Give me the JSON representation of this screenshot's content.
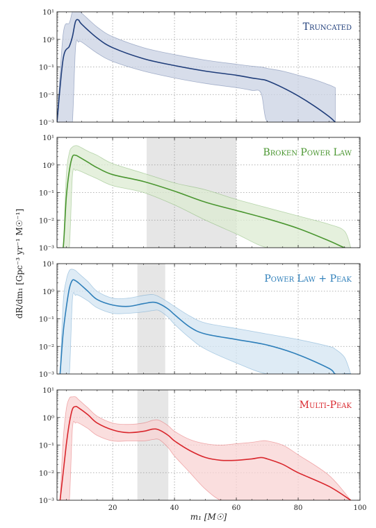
{
  "figure": {
    "ylabel": "dR/dm₁ [Gpc⁻³ yr⁻¹ M☉⁻¹]",
    "xlabel": "m₁ [M☉]"
  },
  "chart_data": [
    {
      "type": "area",
      "title": "Truncated",
      "color": "#1f3d7a",
      "fill": "#c9d2e3",
      "xlim": [
        2,
        100
      ],
      "ylim_log10": [
        -3,
        1
      ],
      "xticks": [
        20,
        40,
        60,
        80,
        100
      ],
      "ytick_labels": [
        "10⁻³",
        "10⁻²",
        "10⁻¹",
        "10⁰",
        "10¹"
      ],
      "shade": null,
      "x": [
        2,
        4,
        6,
        7,
        8,
        9,
        10,
        15,
        20,
        30,
        40,
        50,
        60,
        65,
        68,
        70,
        75,
        80,
        85,
        90,
        92
      ],
      "median": [
        -3,
        -0.7,
        -0.25,
        0.1,
        0.65,
        0.7,
        0.55,
        0.05,
        -0.3,
        -0.7,
        -0.95,
        -1.15,
        -1.3,
        -1.4,
        -1.45,
        -1.5,
        -1.75,
        -2.05,
        -2.4,
        -2.8,
        -3
      ],
      "lower": [
        -3,
        -3,
        -3,
        -3,
        -0.3,
        -0.1,
        -0.1,
        -0.5,
        -0.8,
        -1.15,
        -1.4,
        -1.6,
        -1.75,
        -1.85,
        -1.95,
        -3,
        -3,
        -3,
        -3,
        -3,
        -3
      ],
      "upper": [
        -3,
        0.2,
        0.6,
        1,
        1,
        1,
        0.95,
        0.45,
        0.1,
        -0.3,
        -0.55,
        -0.75,
        -0.9,
        -0.97,
        -1.0,
        -1.05,
        -1.15,
        -1.3,
        -1.45,
        -1.65,
        -1.75
      ]
    },
    {
      "type": "area",
      "title": "Broken Power Law",
      "color": "#4a9630",
      "fill": "#dcebd2",
      "xlim": [
        2,
        100
      ],
      "ylim_log10": [
        -3,
        1
      ],
      "xticks": [
        20,
        40,
        60,
        80,
        100
      ],
      "ytick_labels": [
        "10⁻³",
        "10⁻²",
        "10⁻¹",
        "10⁰",
        "10¹"
      ],
      "shade": [
        31,
        60
      ],
      "x": [
        3,
        4,
        5,
        6,
        7,
        8,
        9,
        12,
        15,
        20,
        30,
        40,
        50,
        60,
        70,
        80,
        90,
        95,
        97
      ],
      "median": [
        -3,
        -3,
        -1.2,
        -0.2,
        0.3,
        0.35,
        0.3,
        0.1,
        -0.1,
        -0.35,
        -0.6,
        -0.95,
        -1.35,
        -1.65,
        -1.95,
        -2.3,
        -2.75,
        -3,
        -3
      ],
      "lower": [
        -3,
        -3,
        -3,
        -3,
        -0.4,
        -0.2,
        -0.2,
        -0.35,
        -0.5,
        -0.75,
        -1.0,
        -1.45,
        -2.0,
        -2.5,
        -3,
        -3,
        -3,
        -3,
        -3
      ],
      "upper": [
        -3,
        -3,
        -0.4,
        0.45,
        0.65,
        0.7,
        0.68,
        0.5,
        0.35,
        0.05,
        -0.3,
        -0.65,
        -0.9,
        -1.25,
        -1.55,
        -1.85,
        -2.15,
        -2.4,
        -3
      ]
    },
    {
      "type": "area",
      "title": "Power Law + Peak",
      "color": "#2e7fba",
      "fill": "#d3e4f1",
      "xlim": [
        2,
        100
      ],
      "ylim_log10": [
        -3,
        1
      ],
      "xticks": [
        20,
        40,
        60,
        80,
        100
      ],
      "ytick_labels": [
        "10⁻³",
        "10⁻²",
        "10⁻¹",
        "10⁰",
        "10¹"
      ],
      "shade": [
        28,
        37
      ],
      "x": [
        3,
        4,
        5,
        6,
        7,
        8,
        9,
        12,
        15,
        20,
        25,
        30,
        33,
        35,
        38,
        40,
        45,
        50,
        60,
        70,
        80,
        90,
        92,
        95,
        97
      ],
      "median": [
        -3,
        -1.5,
        -0.6,
        0.1,
        0.4,
        0.38,
        0.3,
        0.0,
        -0.3,
        -0.5,
        -0.55,
        -0.45,
        -0.4,
        -0.45,
        -0.65,
        -0.85,
        -1.3,
        -1.55,
        -1.75,
        -1.95,
        -2.3,
        -2.8,
        -3,
        -3,
        -3
      ],
      "lower": [
        -3,
        -3,
        -3,
        -3,
        -0.3,
        -0.15,
        -0.15,
        -0.35,
        -0.6,
        -0.8,
        -0.8,
        -0.75,
        -0.7,
        -0.7,
        -0.95,
        -1.2,
        -1.7,
        -2.1,
        -2.6,
        -3,
        -3,
        -3,
        -3,
        -3,
        -3
      ],
      "upper": [
        -3,
        -0.4,
        0.4,
        0.75,
        0.8,
        0.75,
        0.65,
        0.35,
        0.0,
        -0.25,
        -0.25,
        -0.15,
        -0.12,
        -0.2,
        -0.4,
        -0.55,
        -0.9,
        -1.15,
        -1.35,
        -1.55,
        -1.75,
        -2.0,
        -2.1,
        -2.4,
        -3
      ]
    },
    {
      "type": "area",
      "title": "Multi-Peak",
      "color": "#d9262c",
      "fill": "#f8d3d3",
      "xlim": [
        2,
        100
      ],
      "ylim_log10": [
        -3,
        1
      ],
      "xticks": [
        20,
        40,
        60,
        80,
        100
      ],
      "ytick_labels": [
        "10⁻³",
        "10⁻²",
        "10⁻¹",
        "10⁰",
        "10¹"
      ],
      "shade": [
        28,
        38
      ],
      "x": [
        3,
        4,
        5,
        6,
        7,
        8,
        9,
        12,
        15,
        20,
        25,
        30,
        33,
        35,
        38,
        40,
        45,
        50,
        55,
        60,
        65,
        68,
        70,
        75,
        80,
        90,
        97
      ],
      "median": [
        -3,
        -2.0,
        -1.0,
        -0.2,
        0.3,
        0.4,
        0.35,
        0.1,
        -0.2,
        -0.45,
        -0.55,
        -0.5,
        -0.42,
        -0.45,
        -0.65,
        -0.85,
        -1.2,
        -1.45,
        -1.55,
        -1.55,
        -1.5,
        -1.45,
        -1.5,
        -1.7,
        -2.0,
        -2.5,
        -3
      ],
      "lower": [
        -3,
        -3,
        -3,
        -3,
        -0.4,
        -0.2,
        -0.2,
        -0.4,
        -0.65,
        -0.85,
        -0.85,
        -0.85,
        -0.8,
        -0.8,
        -1.1,
        -1.4,
        -2.0,
        -2.6,
        -3,
        -3,
        -3,
        -3,
        -3,
        -3,
        -3,
        -3,
        -3
      ],
      "upper": [
        -3,
        -0.8,
        0.3,
        0.7,
        0.75,
        0.75,
        0.65,
        0.35,
        0.05,
        -0.2,
        -0.25,
        -0.2,
        -0.1,
        -0.1,
        -0.3,
        -0.5,
        -0.8,
        -0.95,
        -1.0,
        -0.95,
        -0.9,
        -0.85,
        -0.85,
        -1.0,
        -1.35,
        -2.1,
        -3
      ]
    }
  ]
}
